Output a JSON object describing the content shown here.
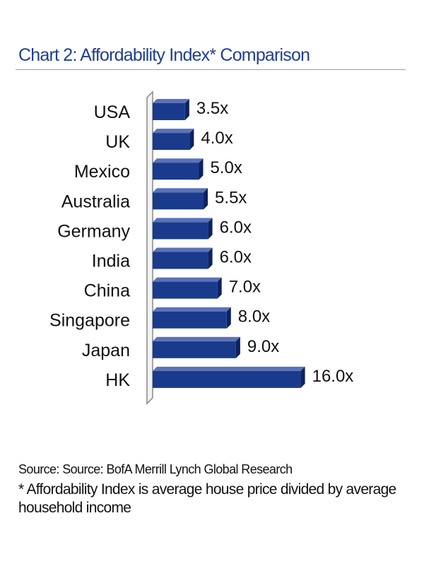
{
  "title": "Chart 2: Affordability Index* Comparison",
  "source": "Source: Source: BofA Merrill Lynch Global Research",
  "footnote": "* Affordability Index is average house price divided by average household income",
  "colors": {
    "title": "#1f3f8f",
    "bar_front": "#1a3a8c",
    "bar_top": "#5a72b8",
    "bar_side": "#0d2260",
    "axis": "#888888"
  },
  "chart_data": {
    "type": "bar",
    "orientation": "horizontal",
    "categories": [
      "USA",
      "UK",
      "Mexico",
      "Australia",
      "Germany",
      "India",
      "China",
      "Singapore",
      "Japan",
      "HK"
    ],
    "values": [
      3.5,
      4.0,
      5.0,
      5.5,
      6.0,
      6.0,
      7.0,
      8.0,
      9.0,
      16.0
    ],
    "data_labels": [
      "3.5x",
      "4.0x",
      "5.0x",
      "5.5x",
      "6.0x",
      "6.0x",
      "7.0x",
      "8.0x",
      "9.0x",
      "16.0x"
    ],
    "title": "Chart 2: Affordability Index* Comparison",
    "xlim": [
      0,
      16
    ],
    "grid": false,
    "legend": "none"
  }
}
